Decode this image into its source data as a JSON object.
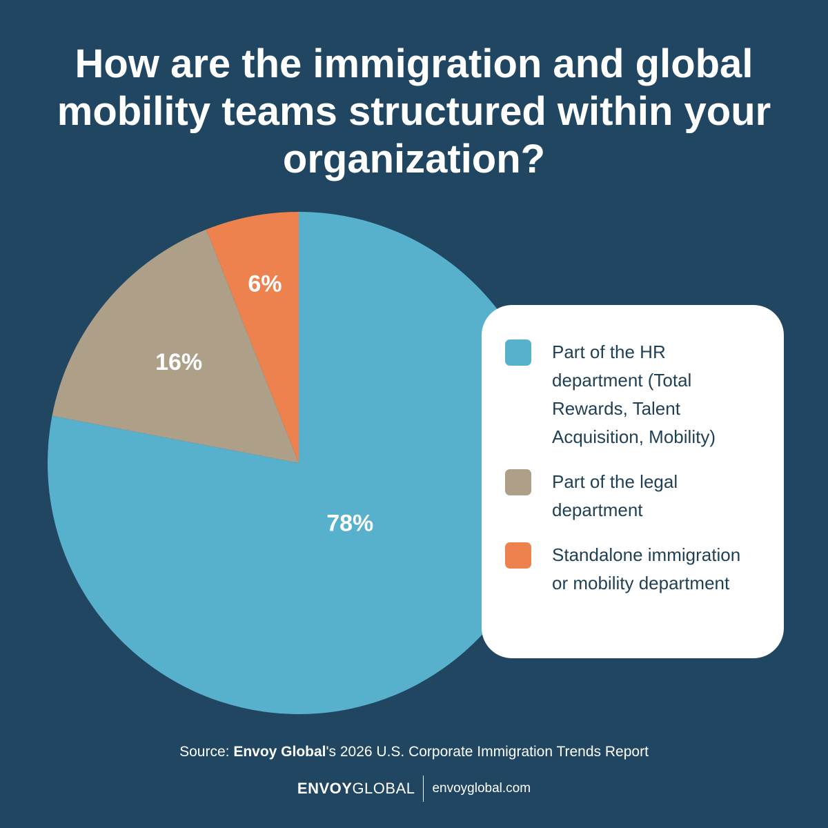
{
  "title": "How are the immigration and global mobility teams structured within your organization?",
  "chart_data": {
    "type": "pie",
    "title": "How are the immigration and global mobility teams structured within your organization?",
    "slices": [
      {
        "label": "Part of the HR department (Total Rewards, Talent Acquisition, Mobility)",
        "value": 78,
        "value_label": "78%",
        "color": "#57b1cc"
      },
      {
        "label": "Part of the legal department",
        "value": 16,
        "value_label": "16%",
        "color": "#ad9f88"
      },
      {
        "label": "Standalone immigration or mobility department",
        "value": 6,
        "value_label": "6%",
        "color": "#ee824e"
      }
    ],
    "legend_position": "right"
  },
  "legend": [
    {
      "label": "Part of the HR department (Total Rewards, Talent Acquisition, Mobility)",
      "color": "#57b1cc"
    },
    {
      "label": "Part of the legal department",
      "color": "#ad9f88"
    },
    {
      "label": "Standalone immigration or mobility department",
      "color": "#ee824e"
    }
  ],
  "source": {
    "prefix": "Source: ",
    "brand": "Envoy Global",
    "suffix": "'s 2026 U.S. Corporate Immigration Trends Report"
  },
  "footer": {
    "logo_strong": "ENVOY",
    "logo_light": "GLOBAL",
    "website": "envoyglobal.com"
  },
  "colors": {
    "background": "#204661",
    "legend_text": "#1f3f55"
  }
}
